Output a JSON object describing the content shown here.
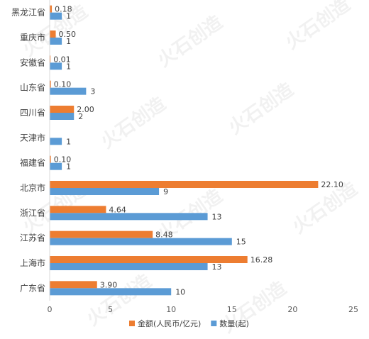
{
  "chart_data": {
    "type": "bar",
    "orientation": "horizontal",
    "categories": [
      "黑龙江省",
      "重庆市",
      "安徽省",
      "山东省",
      "四川省",
      "天津市",
      "福建省",
      "北京市",
      "浙江省",
      "江苏省",
      "上海市",
      "广东省"
    ],
    "series": [
      {
        "name": "金额(人民币/亿元)",
        "color": "#ED7D31",
        "values": [
          0.18,
          0.5,
          0.01,
          0.1,
          2.0,
          null,
          0.1,
          22.1,
          4.64,
          8.48,
          16.28,
          3.9
        ],
        "labels": [
          "0.18",
          "0.50",
          "0.01",
          "0.10",
          "2.00",
          "",
          "0.10",
          "22.10",
          "4.64",
          "8.48",
          "16.28",
          "3.90"
        ]
      },
      {
        "name": "数量(起)",
        "color": "#5B9BD5",
        "values": [
          1,
          1,
          1,
          3,
          2,
          1,
          1,
          9,
          13,
          15,
          13,
          10
        ],
        "labels": [
          "1",
          "1",
          "1",
          "3",
          "2",
          "1",
          "1",
          "9",
          "13",
          "15",
          "13",
          "10"
        ]
      }
    ],
    "xlim": [
      0,
      25
    ],
    "xticks": [
      "0",
      "5",
      "10",
      "15",
      "20",
      "25"
    ],
    "grid": false,
    "legend_position": "bottom",
    "watermark": "火石创造"
  }
}
